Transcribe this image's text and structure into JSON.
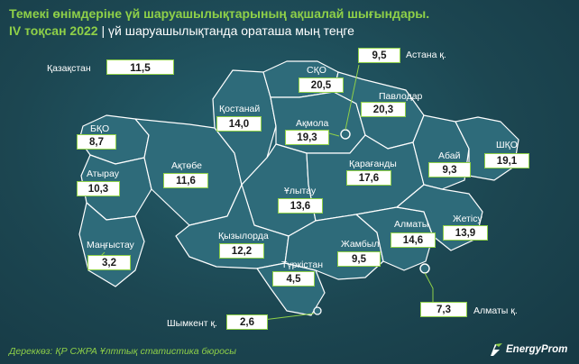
{
  "header": {
    "title": "Темекі өнімдеріне үй шаруашылықтарының ақшалай шығындары.",
    "period": "IV тоқсан 2022",
    "separator": " | ",
    "subtitle": "үй шаруашылықтанда ораташа мың теңге"
  },
  "national": {
    "label": "Қазақстан",
    "value": "11,5"
  },
  "regions": [
    {
      "id": "bko",
      "label": "БҚО",
      "value": "8,7"
    },
    {
      "id": "atyrau",
      "label": "Атырау",
      "value": "10,3"
    },
    {
      "id": "mangystau",
      "label": "Маңғыстау",
      "value": "3,2"
    },
    {
      "id": "aktobe",
      "label": "Ақтөбе",
      "value": "11,6"
    },
    {
      "id": "kostanai",
      "label": "Қостанай",
      "value": "14,0"
    },
    {
      "id": "sko",
      "label": "СҚО",
      "value": "20,5"
    },
    {
      "id": "akmola",
      "label": "Ақмола",
      "value": "19,3"
    },
    {
      "id": "pavlodar",
      "label": "Павлодар",
      "value": "20,3"
    },
    {
      "id": "astana",
      "label": "Астана қ.",
      "value": "9,5"
    },
    {
      "id": "karaganda",
      "label": "Қарағанды",
      "value": "17,6"
    },
    {
      "id": "ulytau",
      "label": "Ұлытау",
      "value": "13,6"
    },
    {
      "id": "abai",
      "label": "Абай",
      "value": "9,3"
    },
    {
      "id": "vko",
      "label": "ШҚО",
      "value": "19,1"
    },
    {
      "id": "kyzylorda",
      "label": "Қызылорда",
      "value": "12,2"
    },
    {
      "id": "turkestan",
      "label": "Түркістан",
      "value": "4,5"
    },
    {
      "id": "shymkent",
      "label": "Шымкент қ.",
      "value": "2,6"
    },
    {
      "id": "zhambyl",
      "label": "Жамбыл",
      "value": "9,5"
    },
    {
      "id": "almaty_obl",
      "label": "Алматы",
      "value": "14,6"
    },
    {
      "id": "zhetisu",
      "label": "Жетісу",
      "value": "13,9"
    },
    {
      "id": "almaty_city",
      "label": "Алматы қ.",
      "value": "7,3"
    }
  ],
  "footer": {
    "source": "Дереккөз: ҚР СЖРА Ұлттық статистика бюросы",
    "logo": "EnergyProm"
  },
  "colors": {
    "background": "#1d4a56",
    "region_fill": "#2e6b7a",
    "accent": "#8fd048",
    "border": "#ffffff"
  }
}
